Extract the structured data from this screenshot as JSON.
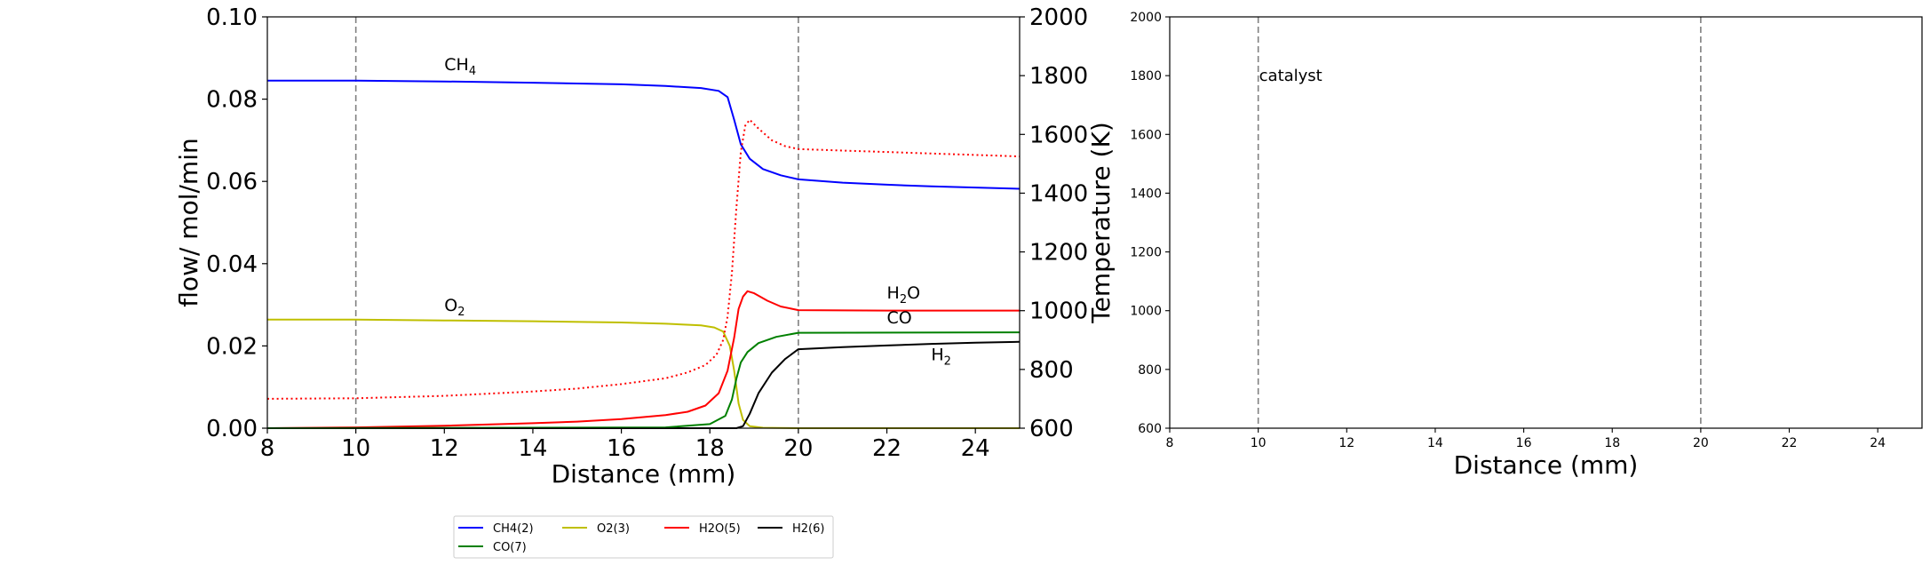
{
  "chart_data": [
    {
      "type": "line",
      "xlabel": "Distance (mm)",
      "ylabel": "flow/ mol/min",
      "ylabel_right": "Temperature (K)",
      "xlim": [
        8,
        25
      ],
      "ylim": [
        0,
        0.1
      ],
      "ylim_right": [
        600,
        2000
      ],
      "x_ticks": [
        "8",
        "10",
        "12",
        "14",
        "16",
        "18",
        "20",
        "22",
        "24"
      ],
      "y_ticks": [
        "0.00",
        "0.02",
        "0.04",
        "0.06",
        "0.08",
        "0.10"
      ],
      "y_ticks_right": [
        "600",
        "800",
        "1000",
        "1200",
        "1400",
        "1600",
        "1800",
        "2000"
      ],
      "vlines": [
        10,
        20
      ],
      "grid": false,
      "legend_position": "below plot",
      "series": [
        {
          "name": "CH4(2)",
          "color": "#0000ff",
          "style": "solid",
          "axis": "left",
          "x": [
            8,
            10,
            12,
            14,
            16,
            17,
            17.8,
            18.2,
            18.4,
            18.55,
            18.7,
            18.9,
            19.2,
            19.6,
            20,
            21,
            22,
            23,
            24,
            25
          ],
          "y": [
            0.0845,
            0.0845,
            0.0843,
            0.084,
            0.0836,
            0.0832,
            0.0827,
            0.082,
            0.0805,
            0.075,
            0.069,
            0.0655,
            0.063,
            0.0615,
            0.0605,
            0.0597,
            0.0592,
            0.0588,
            0.0585,
            0.0582
          ]
        },
        {
          "name": "O2(3)",
          "color": "#bfbf00",
          "style": "solid",
          "axis": "left",
          "x": [
            8,
            10,
            12,
            14,
            16,
            17,
            17.8,
            18.1,
            18.3,
            18.45,
            18.55,
            18.65,
            18.75,
            18.9,
            19.2,
            20,
            25
          ],
          "y": [
            0.0264,
            0.0264,
            0.0262,
            0.026,
            0.0257,
            0.0254,
            0.025,
            0.0245,
            0.0235,
            0.02,
            0.014,
            0.006,
            0.002,
            0.0005,
            0.0001,
            0.0,
            0.0
          ]
        },
        {
          "name": "H2O(5)",
          "color": "#ff0000",
          "style": "solid",
          "axis": "left",
          "x": [
            8,
            10,
            12,
            14,
            15,
            16,
            17,
            17.5,
            17.9,
            18.2,
            18.4,
            18.55,
            18.65,
            18.75,
            18.85,
            19.0,
            19.3,
            19.6,
            20,
            22,
            25
          ],
          "y": [
            0.0,
            0.0002,
            0.0006,
            0.0012,
            0.0016,
            0.0022,
            0.0032,
            0.004,
            0.0055,
            0.0085,
            0.014,
            0.022,
            0.029,
            0.032,
            0.0333,
            0.0328,
            0.031,
            0.0296,
            0.0287,
            0.0286,
            0.0286
          ]
        },
        {
          "name": "H2(6)",
          "color": "#000000",
          "style": "solid",
          "axis": "left",
          "x": [
            8,
            18.6,
            18.75,
            18.9,
            19.1,
            19.4,
            19.7,
            20,
            21,
            22,
            23,
            24,
            25
          ],
          "y": [
            0.0,
            0.0,
            0.0005,
            0.0035,
            0.0085,
            0.0135,
            0.0168,
            0.0192,
            0.0197,
            0.0201,
            0.0205,
            0.0208,
            0.021
          ]
        },
        {
          "name": "CO(7)",
          "color": "#008000",
          "style": "solid",
          "axis": "left",
          "x": [
            8,
            17,
            18,
            18.35,
            18.5,
            18.6,
            18.7,
            18.85,
            19.1,
            19.5,
            20,
            25
          ],
          "y": [
            0.0,
            0.0002,
            0.001,
            0.003,
            0.007,
            0.012,
            0.016,
            0.0185,
            0.0207,
            0.0222,
            0.0232,
            0.0233
          ]
        },
        {
          "name": "",
          "color": "#ff0000",
          "style": "dotted",
          "axis": "right",
          "x": [
            8,
            10,
            12,
            14,
            15,
            16,
            17,
            17.5,
            17.9,
            18.15,
            18.3,
            18.4,
            18.5,
            18.6,
            18.7,
            18.8,
            18.9,
            19.1,
            19.4,
            19.7,
            20,
            21,
            22,
            23,
            24,
            25
          ],
          "y": [
            700,
            702,
            710,
            725,
            735,
            750,
            770,
            790,
            815,
            850,
            900,
            980,
            1130,
            1350,
            1540,
            1630,
            1650,
            1620,
            1580,
            1560,
            1550,
            1545,
            1540,
            1535,
            1530,
            1525
          ]
        }
      ],
      "annotations": [
        {
          "text": "CH",
          "sub": "4",
          "x": 12.0,
          "y": 0.087,
          "color": "#0000ff"
        },
        {
          "text": "O",
          "sub": "2",
          "x": 12.0,
          "y": 0.0285,
          "color": "#bfbf00"
        },
        {
          "text": "H",
          "sub": "2",
          "text2": "O",
          "x": 22.0,
          "y": 0.0315,
          "color": "#ff0000"
        },
        {
          "text": "CO",
          "sub": "",
          "x": 22.0,
          "y": 0.0255,
          "color": "#008000"
        },
        {
          "text": "H",
          "sub": "2",
          "x": 23.0,
          "y": 0.0165,
          "color": "#000000"
        }
      ]
    },
    {
      "type": "line",
      "xlabel": "Distance (mm)",
      "ylabel": "",
      "xlim": [
        8,
        25
      ],
      "ylim": [
        600,
        2000
      ],
      "x_ticks": [
        "8",
        "10",
        "12",
        "14",
        "16",
        "18",
        "20",
        "22",
        "24"
      ],
      "y_ticks": [
        "600",
        "800",
        "1000",
        "1200",
        "1400",
        "1600",
        "1800",
        "2000"
      ],
      "vlines": [
        10,
        20
      ],
      "grid": false,
      "series": [],
      "annotations": [
        {
          "text": "catalyst",
          "x": 10.0,
          "y": 1800,
          "color": "#000000"
        }
      ]
    }
  ]
}
